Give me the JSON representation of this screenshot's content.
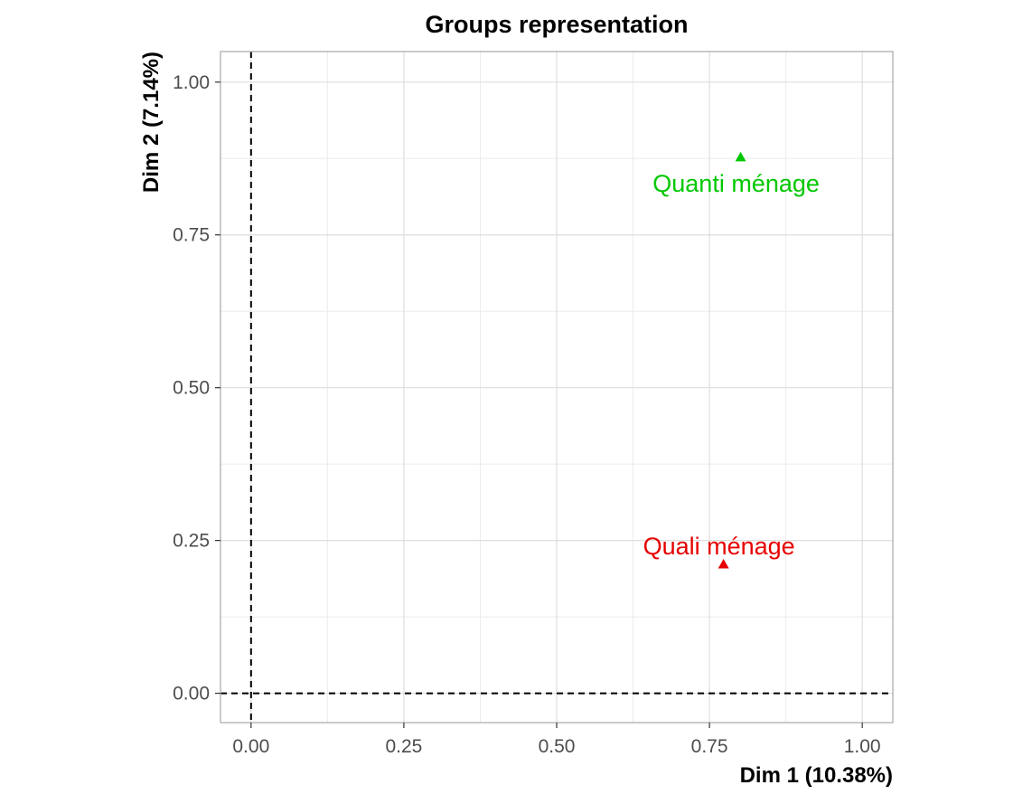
{
  "chart_data": {
    "type": "scatter",
    "title": "Groups representation",
    "xlabel": "Dim 1 (10.38%)",
    "ylabel": "Dim 2 (7.14%)",
    "xlim": [
      -0.05,
      1.05
    ],
    "ylim": [
      -0.048,
      1.05
    ],
    "x_ticks": [
      0.0,
      0.25,
      0.5,
      0.75,
      1.0
    ],
    "x_tick_labels": [
      "0.00",
      "0.25",
      "0.50",
      "0.75",
      "1.00"
    ],
    "y_ticks": [
      0.0,
      0.25,
      0.5,
      0.75,
      1.0
    ],
    "y_tick_labels": [
      "0.00",
      "0.25",
      "0.50",
      "0.75",
      "1.00"
    ],
    "grid": true,
    "reference_lines": {
      "x": 0,
      "y": 0,
      "style": "dashed"
    },
    "marker": "triangle",
    "points": [
      {
        "label": "Quanti ménage",
        "x": 0.801,
        "y": 0.877,
        "color": "#00c800",
        "label_position": "below"
      },
      {
        "label": "Quali ménage",
        "x": 0.773,
        "y": 0.211,
        "color": "#e60000",
        "label_position": "above"
      }
    ],
    "colors": {
      "panel_border": "#b3b3b3",
      "grid_major": "#dedede",
      "grid_minor": "#ebebeb",
      "reference_line": "#000000"
    }
  }
}
